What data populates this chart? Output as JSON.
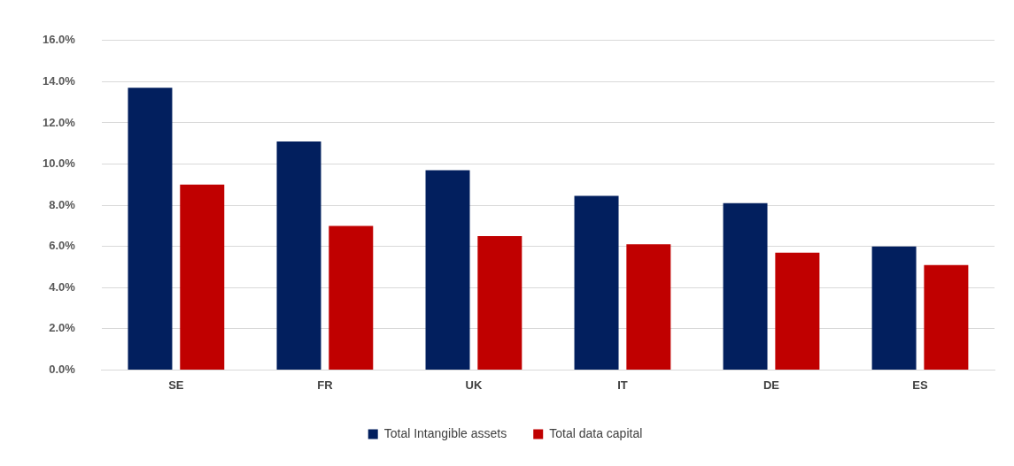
{
  "chart_data": {
    "type": "bar",
    "categories": [
      "SE",
      "FR",
      "UK",
      "IT",
      "DE",
      "ES"
    ],
    "series": [
      {
        "name": "Total Intangible assets",
        "color": "#021f5e",
        "values": [
          13.7,
          11.1,
          9.7,
          8.45,
          8.1,
          6.0
        ]
      },
      {
        "name": "Total data capital",
        "color": "#c00000",
        "values": [
          9.0,
          7.0,
          6.5,
          6.1,
          5.7,
          5.1
        ]
      }
    ],
    "ylim": [
      0,
      16
    ],
    "yticks": [
      {
        "value": 0,
        "label": "0.0%"
      },
      {
        "value": 2,
        "label": "2.0%"
      },
      {
        "value": 4,
        "label": "4.0%"
      },
      {
        "value": 6,
        "label": "6.0%"
      },
      {
        "value": 8,
        "label": "8.0%"
      },
      {
        "value": 10,
        "label": "10.0%"
      },
      {
        "value": 12,
        "label": "12.0%"
      },
      {
        "value": 14,
        "label": "14.0%"
      },
      {
        "value": 16,
        "label": "16.0%"
      }
    ],
    "grid": "y",
    "legend": "bottom"
  }
}
